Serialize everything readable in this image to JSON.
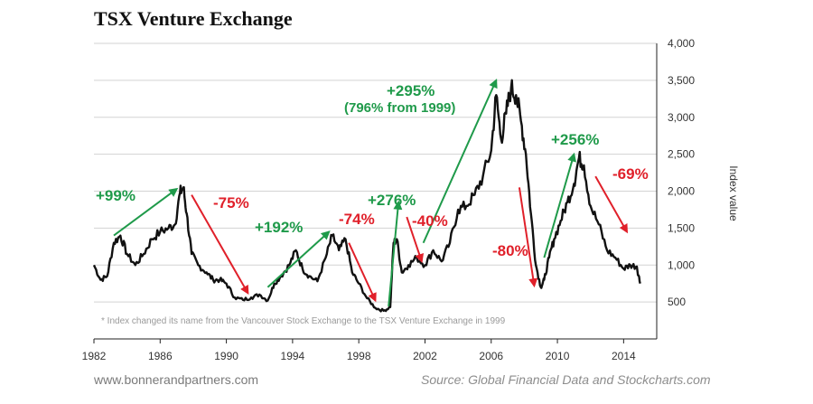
{
  "title": "TSX Venture Exchange",
  "footer": {
    "website": "www.bonnerandpartners.com",
    "source": "Source: Global Financial Data and Stockcharts.com"
  },
  "colors": {
    "line": "#111111",
    "up": "#1f9a4a",
    "down": "#e0202a",
    "grid": "#d3d3d3",
    "text": "#333333"
  },
  "chart_data": {
    "type": "line",
    "title": "TSX Venture Exchange",
    "xlabel": "",
    "ylabel": "Index value",
    "xlim": [
      1982,
      2016
    ],
    "ylim": [
      0,
      4000
    ],
    "x_ticks": [
      1982,
      1986,
      1990,
      1994,
      1998,
      2002,
      2006,
      2010,
      2014
    ],
    "x_tick_labels": [
      "1982",
      "1986",
      "1990",
      "1994",
      "1998",
      "2002",
      "2006",
      "2010",
      "2014"
    ],
    "y_ticks": [
      500,
      1000,
      1500,
      2000,
      2500,
      3000,
      3500,
      4000
    ],
    "y_tick_labels": [
      "500",
      "1,000",
      "1,500",
      "2,000",
      "2,500",
      "3,000",
      "3,500",
      "4,000"
    ],
    "grid": "horizontal",
    "footnote": "* Index changed its name from the Vancouver Stock Exchange to the TSX Venture Exchange in 1999",
    "series": [
      {
        "name": "TSX Venture Exchange index",
        "x": [
          1982.0,
          1982.4,
          1982.8,
          1983.2,
          1983.6,
          1984.0,
          1984.5,
          1985.0,
          1985.5,
          1986.0,
          1986.5,
          1986.9,
          1987.2,
          1987.4,
          1987.6,
          1987.9,
          1988.3,
          1988.8,
          1989.2,
          1989.6,
          1990.0,
          1990.5,
          1991.0,
          1991.5,
          1992.0,
          1992.5,
          1992.9,
          1993.3,
          1993.8,
          1994.2,
          1994.6,
          1995.0,
          1995.5,
          1996.0,
          1996.4,
          1996.8,
          1997.2,
          1997.6,
          1998.0,
          1998.5,
          1999.0,
          1999.5,
          1999.9,
          2000.1,
          2000.3,
          2000.6,
          2001.0,
          2001.5,
          2002.0,
          2002.5,
          2003.0,
          2003.5,
          2004.0,
          2004.5,
          2005.0,
          2005.5,
          2006.0,
          2006.3,
          2006.6,
          2006.9,
          2007.2,
          2007.5,
          2007.8,
          2008.1,
          2008.4,
          2008.7,
          2009.0,
          2009.2,
          2009.5,
          2009.8,
          2010.2,
          2010.6,
          2011.0,
          2011.3,
          2011.6,
          2012.0,
          2012.5,
          2013.0,
          2013.5,
          2014.0,
          2014.4,
          2014.8,
          2015.0
        ],
        "values": [
          1000,
          800,
          850,
          1300,
          1400,
          1150,
          1000,
          1150,
          1350,
          1450,
          1500,
          1550,
          1980,
          2050,
          1700,
          1150,
          1000,
          900,
          800,
          800,
          750,
          560,
          530,
          560,
          600,
          520,
          750,
          850,
          1000,
          1200,
          950,
          850,
          780,
          1100,
          1400,
          1200,
          1350,
          900,
          750,
          550,
          420,
          380,
          430,
          1300,
          1350,
          900,
          1000,
          1100,
          1000,
          1200,
          1050,
          1300,
          1750,
          1800,
          1950,
          2200,
          2550,
          3300,
          2700,
          3050,
          3400,
          3300,
          2950,
          2500,
          1700,
          1000,
          700,
          800,
          1100,
          1350,
          1600,
          1850,
          2100,
          2450,
          2350,
          1800,
          1550,
          1200,
          1100,
          950,
          1000,
          980,
          750
        ]
      }
    ],
    "annotations": [
      {
        "label": "+99%",
        "direction": "up",
        "from": [
          1983.2,
          1400
        ],
        "to": [
          1987.0,
          2030
        ]
      },
      {
        "label": "-75%",
        "direction": "down",
        "from": [
          1987.9,
          1950
        ],
        "to": [
          1991.3,
          620
        ]
      },
      {
        "label": "+192%",
        "direction": "up",
        "from": [
          1992.5,
          700
        ],
        "to": [
          1996.2,
          1450
        ]
      },
      {
        "label": "-74%",
        "direction": "down",
        "from": [
          1997.4,
          1300
        ],
        "to": [
          1999.0,
          520
        ]
      },
      {
        "label": "+276%",
        "direction": "up",
        "from": [
          1999.8,
          440
        ],
        "to": [
          2000.4,
          1850
        ]
      },
      {
        "label": "-40%",
        "direction": "down",
        "from": [
          2000.9,
          1650
        ],
        "to": [
          2001.8,
          1050
        ]
      },
      {
        "label": "+295%",
        "sublabel": "(796% from 1999)",
        "direction": "up",
        "from": [
          2001.9,
          1300
        ],
        "to": [
          2006.3,
          3500
        ]
      },
      {
        "label": "-80%",
        "direction": "down",
        "from": [
          2007.7,
          2050
        ],
        "to": [
          2008.6,
          720
        ]
      },
      {
        "label": "+256%",
        "direction": "up",
        "from": [
          2009.2,
          1100
        ],
        "to": [
          2011.0,
          2500
        ]
      },
      {
        "label": "-69%",
        "direction": "down",
        "from": [
          2012.3,
          2200
        ],
        "to": [
          2014.2,
          1450
        ]
      }
    ]
  }
}
